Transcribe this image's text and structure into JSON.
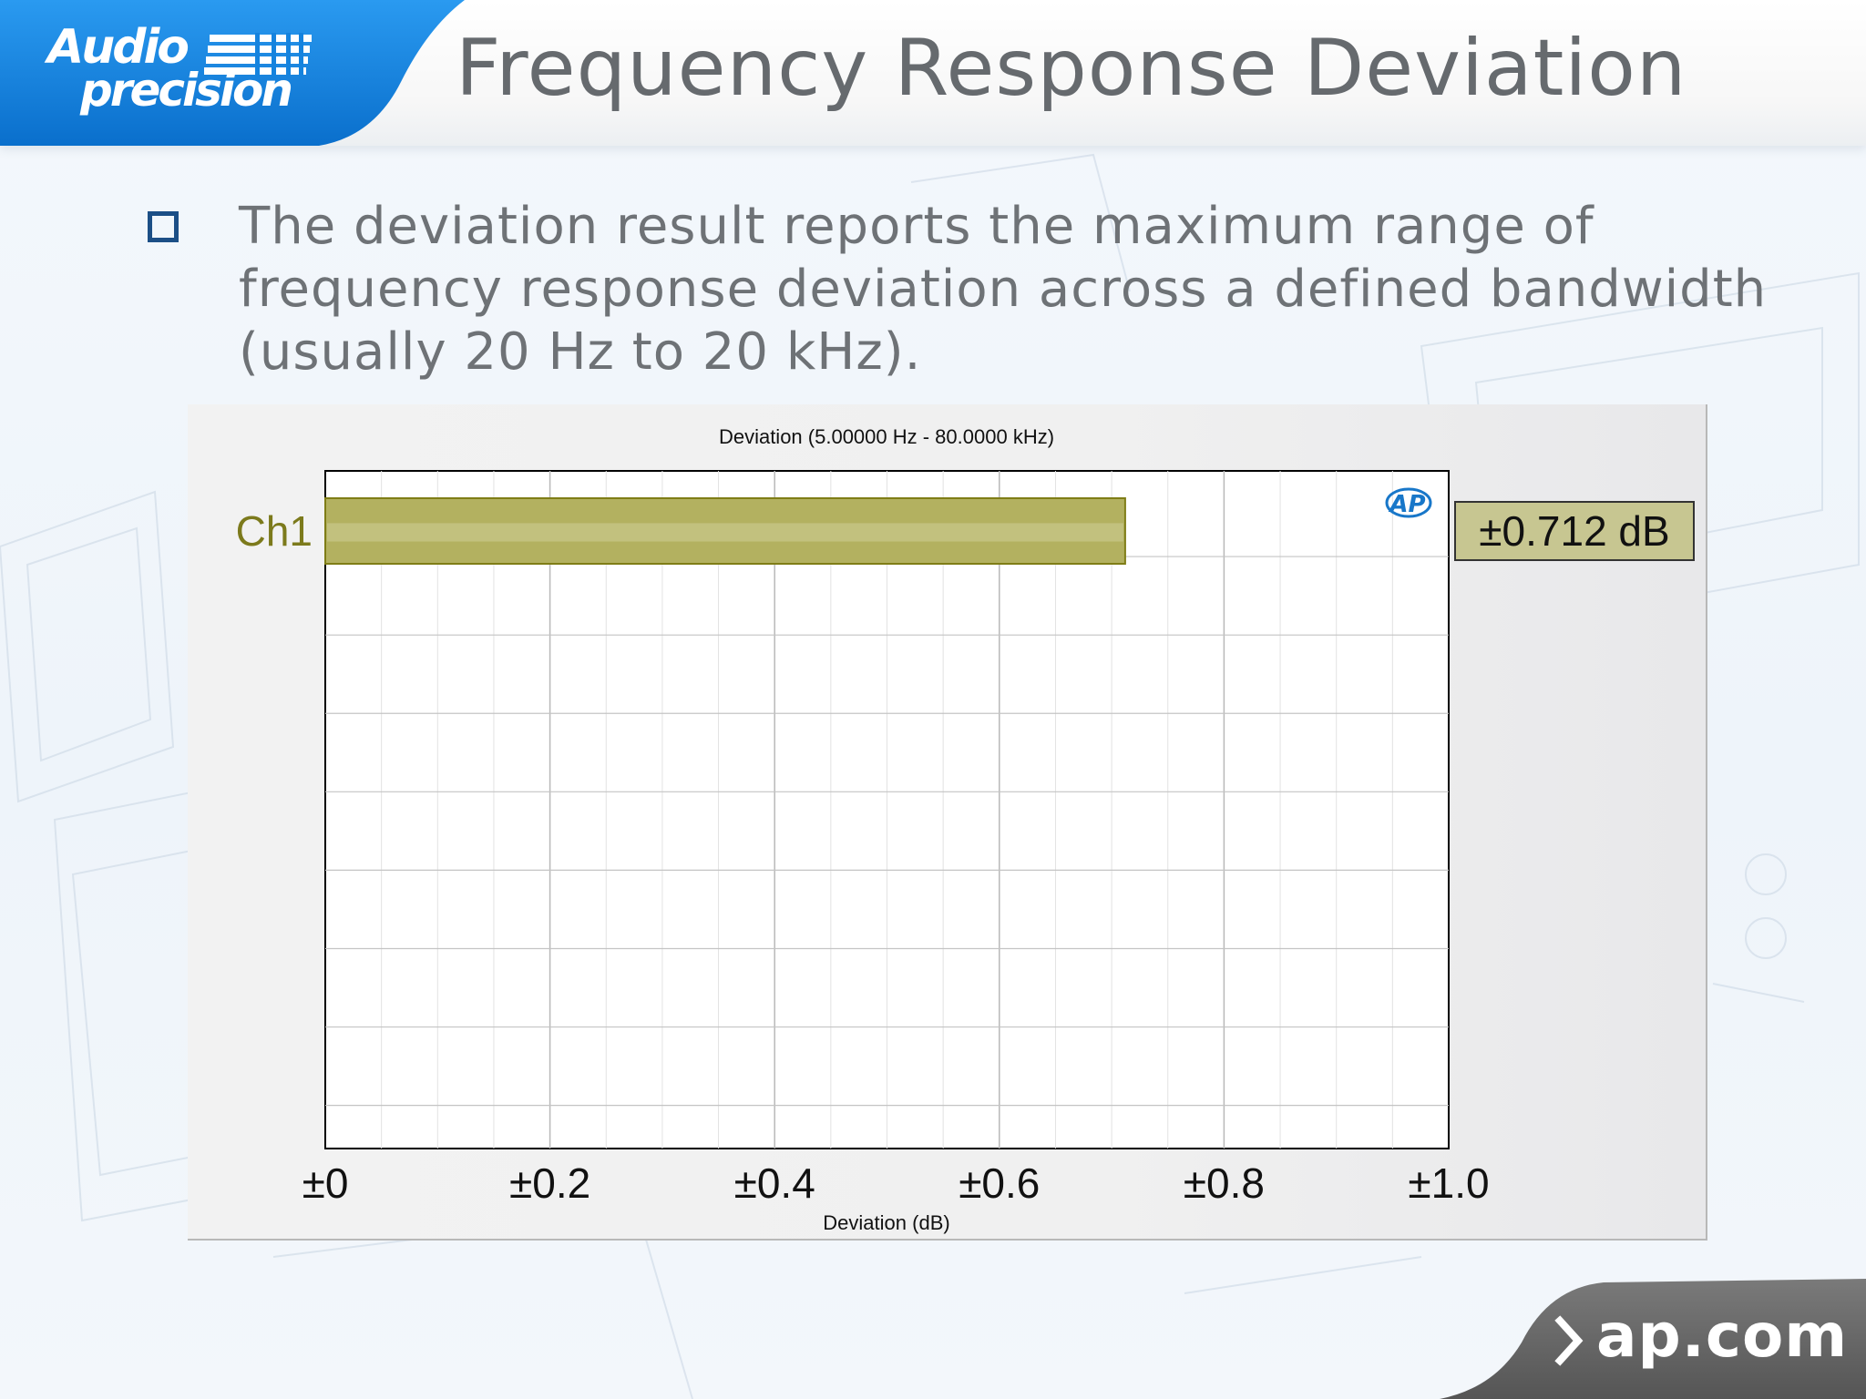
{
  "header": {
    "logo_line1": "Audio",
    "logo_line2": "precision",
    "title": "Frequency Response Deviation"
  },
  "bullets": [
    {
      "text": "The deviation result reports the maximum range of frequency response deviation across a defined bandwidth (usually 20 Hz to 20 kHz)."
    }
  ],
  "chart_data": {
    "type": "bar",
    "orientation": "horizontal",
    "title": "Deviation (5.00000 Hz - 80.0000 kHz)",
    "xlabel": "Deviation (dB)",
    "ylabel": "",
    "categories": [
      "Ch1"
    ],
    "values": [
      0.712
    ],
    "value_labels": [
      "±0.712 dB"
    ],
    "xlim": [
      0,
      1.0
    ],
    "x_ticks": [
      0,
      0.2,
      0.4,
      0.6,
      0.8,
      1.0
    ],
    "x_tick_labels": [
      "±0",
      "±0.2",
      "±0.4",
      "±0.6",
      "±0.8",
      "±1.0"
    ],
    "grid": true,
    "watermark": "AP",
    "colors": {
      "bar": "#b3b160",
      "bar_border": "#7f7d16",
      "category_label": "#7c7a1c",
      "value_box": "#c7c691"
    }
  },
  "footer": {
    "text": "ap.com",
    "chevron_icon": "chevron-right-icon"
  },
  "colors": {
    "brand_blue": "#0f7fd8",
    "title_gray": "#666a6e",
    "bullet_blue": "#1c4f86",
    "footer_gray": "#666666"
  }
}
